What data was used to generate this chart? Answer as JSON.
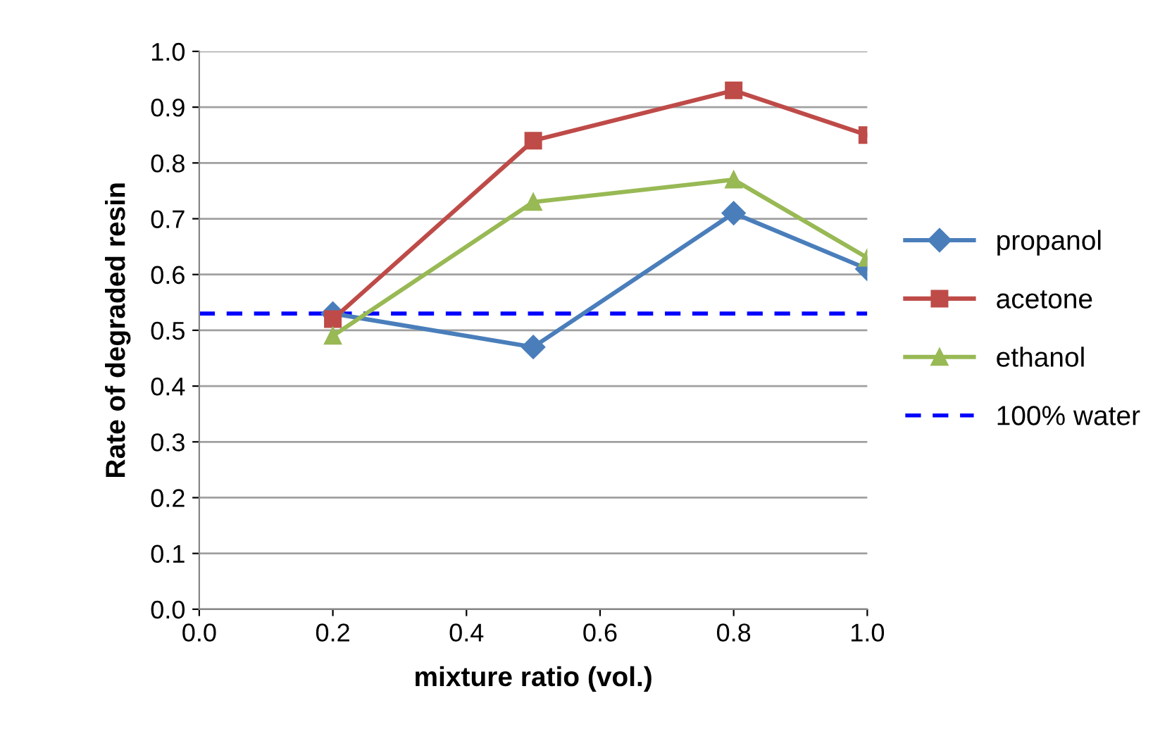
{
  "chart_data": {
    "type": "line",
    "xlabel": "mixture ratio (vol.)",
    "ylabel": "Rate of degraded resin",
    "x": [
      0.2,
      0.5,
      0.8,
      1.0
    ],
    "series": [
      {
        "name": "propanol",
        "color": "#4a7ebb",
        "values": [
          0.53,
          0.47,
          0.71,
          0.61
        ],
        "marker": "diamond"
      },
      {
        "name": "acetone",
        "color": "#be4b48",
        "values": [
          0.52,
          0.84,
          0.93,
          0.85
        ],
        "marker": "square"
      },
      {
        "name": "ethanol",
        "color": "#98b954",
        "values": [
          0.49,
          0.73,
          0.77,
          0.63
        ],
        "marker": "triangle"
      }
    ],
    "ref_lines": [
      {
        "axis": "y",
        "value": 0.53,
        "label": "100% water",
        "color": "#0000ff",
        "line_style": "dashed"
      }
    ],
    "xlim": [
      0.0,
      1.0
    ],
    "xticks": [
      {
        "value": 0.0,
        "label": "0.0"
      },
      {
        "value": 0.2,
        "label": "0.2"
      },
      {
        "value": 0.4,
        "label": "0.4"
      },
      {
        "value": 0.6,
        "label": "0.6"
      },
      {
        "value": 0.8,
        "label": "0.8"
      },
      {
        "value": 1.0,
        "label": "1.0"
      }
    ],
    "ylim": [
      0.0,
      1.0
    ],
    "yticks": [
      {
        "value": 0.0,
        "label": "0.0"
      },
      {
        "value": 0.1,
        "label": "0.1"
      },
      {
        "value": 0.2,
        "label": "0.2"
      },
      {
        "value": 0.3,
        "label": "0.3"
      },
      {
        "value": 0.4,
        "label": "0.4"
      },
      {
        "value": 0.5,
        "label": "0.5"
      },
      {
        "value": 0.6,
        "label": "0.6"
      },
      {
        "value": 0.7,
        "label": "0.7"
      },
      {
        "value": 0.8,
        "label": "0.8"
      },
      {
        "value": 0.9,
        "label": "0.9"
      },
      {
        "value": 1.0,
        "label": "1.0"
      }
    ],
    "grid": "y",
    "legend": "right",
    "line_style": "solid"
  }
}
